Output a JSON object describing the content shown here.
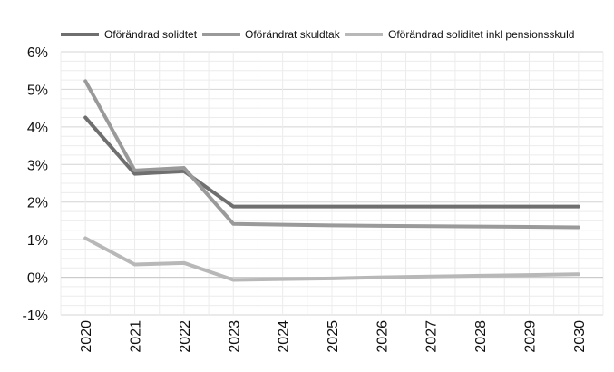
{
  "chart_data": {
    "type": "line",
    "title": "",
    "xlabel": "",
    "ylabel": "",
    "categories": [
      "2020",
      "2021",
      "2022",
      "2023",
      "2024",
      "2025",
      "2026",
      "2027",
      "2028",
      "2029",
      "2030"
    ],
    "ylim": [
      -1,
      6
    ],
    "yticks": [
      -1,
      0,
      1,
      2,
      3,
      4,
      5,
      6
    ],
    "ytick_labels": [
      "-1%",
      "0%",
      "1%",
      "2%",
      "3%",
      "4%",
      "5%",
      "6%"
    ],
    "grid": true,
    "legend_position": "top",
    "series": [
      {
        "name": "Oförändrad solidtet",
        "color": "#6f6f6f",
        "values": [
          4.25,
          2.75,
          2.82,
          1.88,
          1.88,
          1.88,
          1.88,
          1.88,
          1.88,
          1.88,
          1.88
        ]
      },
      {
        "name": "Oförändrat skuldtak",
        "color": "#9a9a9a",
        "values": [
          5.22,
          2.84,
          2.91,
          1.42,
          1.4,
          1.38,
          1.37,
          1.36,
          1.35,
          1.34,
          1.33
        ]
      },
      {
        "name": "Oförändrad soliditet inkl pensionsskuld",
        "color": "#b8b8b8",
        "values": [
          1.04,
          0.34,
          0.38,
          -0.07,
          -0.05,
          -0.03,
          0.0,
          0.02,
          0.04,
          0.06,
          0.08
        ]
      }
    ]
  }
}
